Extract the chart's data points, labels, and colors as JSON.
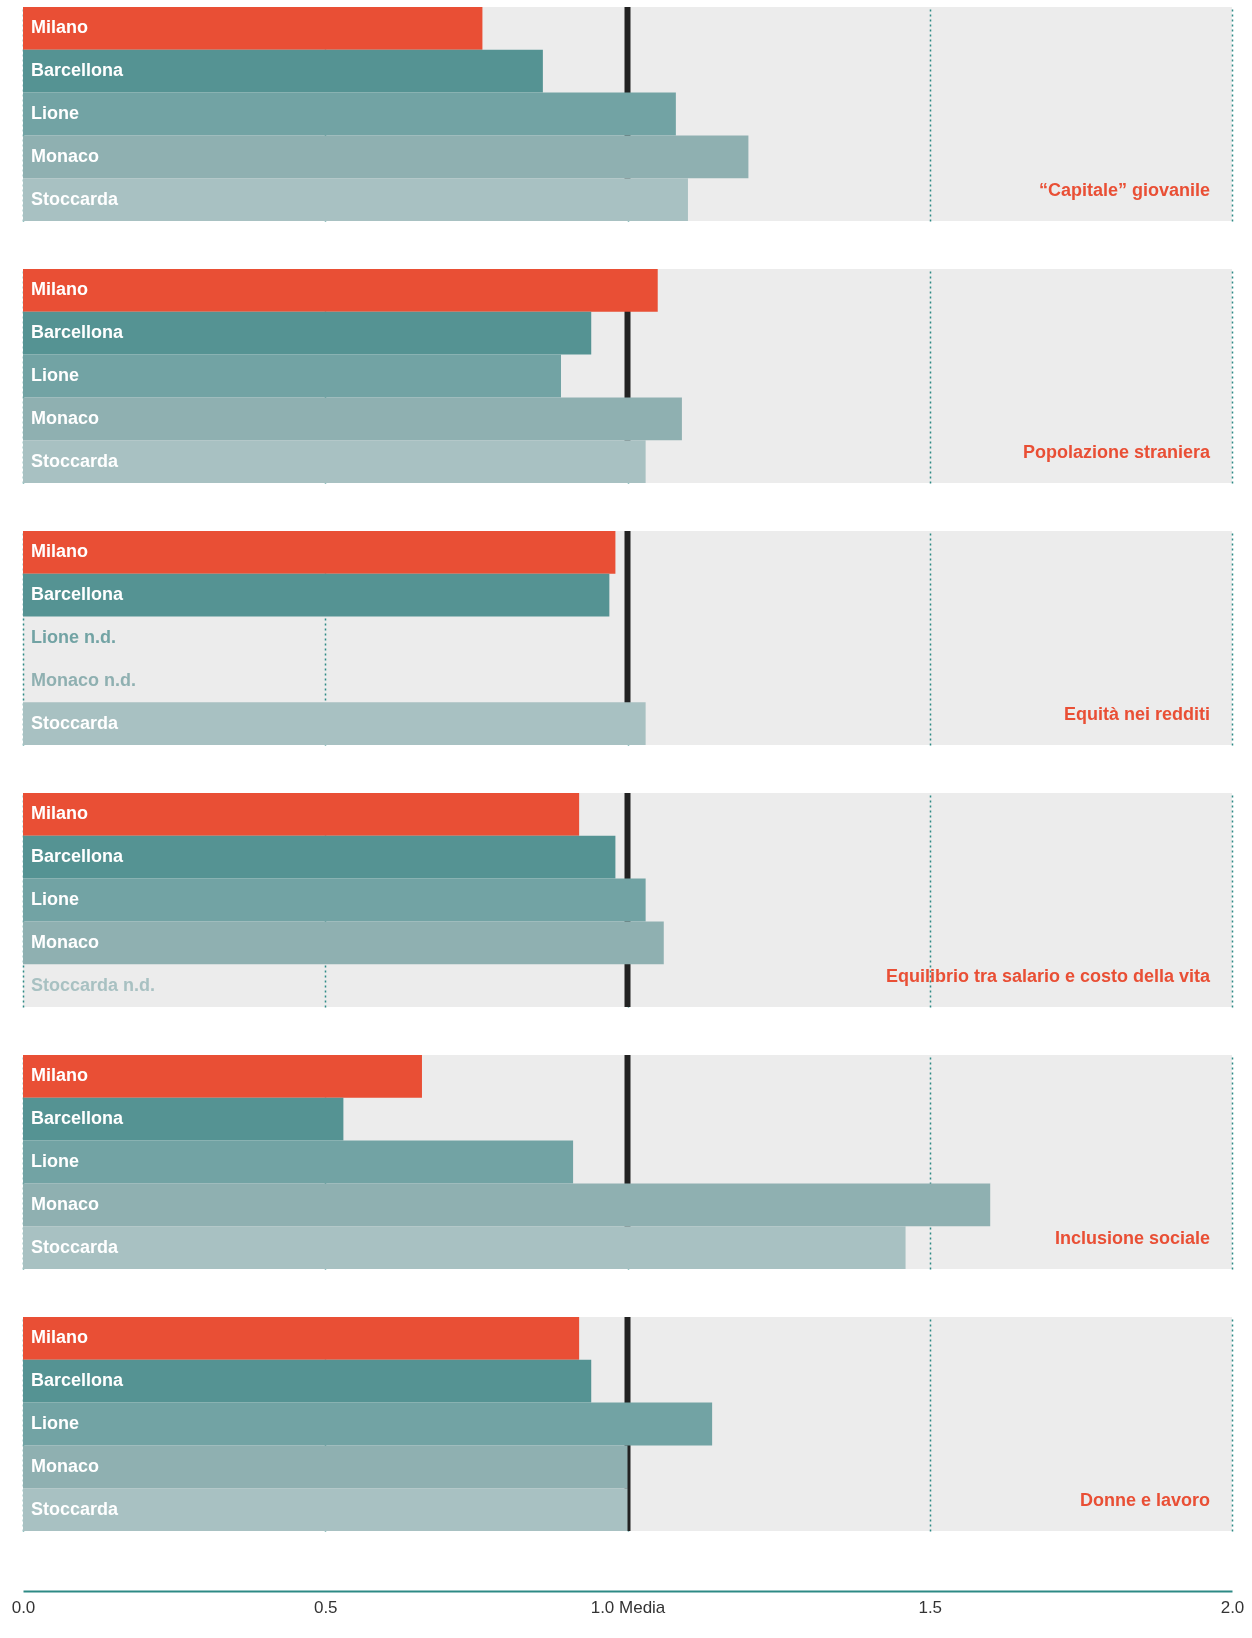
{
  "chart_data": [
    {
      "type": "bar",
      "orientation": "horizontal",
      "title": "“Capitale” giovanile",
      "categories": [
        "Milano",
        "Barcellona",
        "Lione",
        "Monaco",
        "Stoccarda"
      ],
      "values": [
        0.76,
        0.86,
        1.08,
        1.2,
        1.1
      ],
      "colors": [
        "#e94f35",
        "#559393",
        "#72a3a4",
        "#8fb0b1",
        "#a8c1c2"
      ],
      "xlim": [
        0,
        2
      ],
      "xticks": [
        0,
        0.5,
        1,
        1.5,
        2
      ],
      "grid": "x",
      "ref_lines": [
        {
          "axis": "x",
          "value": 1,
          "color": "#222222"
        }
      ],
      "tick_labels": false
    },
    {
      "type": "bar",
      "orientation": "horizontal",
      "title": "Popolazione straniera",
      "categories": [
        "Milano",
        "Barcellona",
        "Lione",
        "Monaco",
        "Stoccarda"
      ],
      "values": [
        1.05,
        0.94,
        0.89,
        1.09,
        1.03
      ],
      "colors": [
        "#e94f35",
        "#559393",
        "#72a3a4",
        "#8fb0b1",
        "#a8c1c2"
      ],
      "xlim": [
        0,
        2
      ],
      "xticks": [
        0,
        0.5,
        1,
        1.5,
        2
      ],
      "grid": "x",
      "ref_lines": [
        {
          "axis": "x",
          "value": 1,
          "color": "#222222"
        }
      ],
      "tick_labels": false
    },
    {
      "type": "bar",
      "orientation": "horizontal",
      "title": "Equità nei redditi",
      "categories": [
        "Milano",
        "Barcellona",
        "Lione",
        "Monaco",
        "Stoccarda"
      ],
      "values": [
        0.98,
        0.97,
        null,
        null,
        1.03
      ],
      "value_labels": [
        null,
        null,
        "n.d.",
        "n.d.",
        null
      ],
      "colors": [
        "#e94f35",
        "#559393",
        "#72a3a4",
        "#8fb0b1",
        "#a8c1c2"
      ],
      "xlim": [
        0,
        2
      ],
      "xticks": [
        0,
        0.5,
        1,
        1.5,
        2
      ],
      "grid": "x",
      "ref_lines": [
        {
          "axis": "x",
          "value": 1,
          "color": "#222222"
        }
      ],
      "tick_labels": false
    },
    {
      "type": "bar",
      "orientation": "horizontal",
      "title": "Equilibrio tra salario e costo della vita",
      "categories": [
        "Milano",
        "Barcellona",
        "Lione",
        "Monaco",
        "Stoccarda"
      ],
      "values": [
        0.92,
        0.98,
        1.03,
        1.06,
        null
      ],
      "value_labels": [
        null,
        null,
        null,
        null,
        "n.d."
      ],
      "colors": [
        "#e94f35",
        "#559393",
        "#72a3a4",
        "#8fb0b1",
        "#a8c1c2"
      ],
      "xlim": [
        0,
        2
      ],
      "xticks": [
        0,
        0.5,
        1,
        1.5,
        2
      ],
      "grid": "x",
      "ref_lines": [
        {
          "axis": "x",
          "value": 1,
          "color": "#222222"
        }
      ],
      "tick_labels": false
    },
    {
      "type": "bar",
      "orientation": "horizontal",
      "title": "Inclusione sociale",
      "categories": [
        "Milano",
        "Barcellona",
        "Lione",
        "Monaco",
        "Stoccarda"
      ],
      "values": [
        0.66,
        0.53,
        0.91,
        1.6,
        1.46
      ],
      "colors": [
        "#e94f35",
        "#559393",
        "#72a3a4",
        "#8fb0b1",
        "#a8c1c2"
      ],
      "xlim": [
        0,
        2
      ],
      "xticks": [
        0,
        0.5,
        1,
        1.5,
        2
      ],
      "grid": "x",
      "ref_lines": [
        {
          "axis": "x",
          "value": 1,
          "color": "#222222"
        }
      ],
      "tick_labels": false
    },
    {
      "type": "bar",
      "orientation": "horizontal",
      "title": "Donne e lavoro",
      "categories": [
        "Milano",
        "Barcellona",
        "Lione",
        "Monaco",
        "Stoccarda"
      ],
      "values": [
        0.92,
        0.94,
        1.14,
        1.0,
        1.0
      ],
      "colors": [
        "#e94f35",
        "#559393",
        "#72a3a4",
        "#8fb0b1",
        "#a8c1c2"
      ],
      "xlim": [
        0,
        2
      ],
      "xticks": [
        {
          "value": 0,
          "label": "0.0"
        },
        0.5,
        {
          "value": 1,
          "label": "1.0 Media"
        },
        1.5,
        {
          "value": 2,
          "label": "2.0"
        }
      ],
      "grid": "x",
      "ref_lines": [
        {
          "axis": "x",
          "value": 1,
          "color": "#222222"
        }
      ],
      "tick_labels": "x"
    }
  ]
}
